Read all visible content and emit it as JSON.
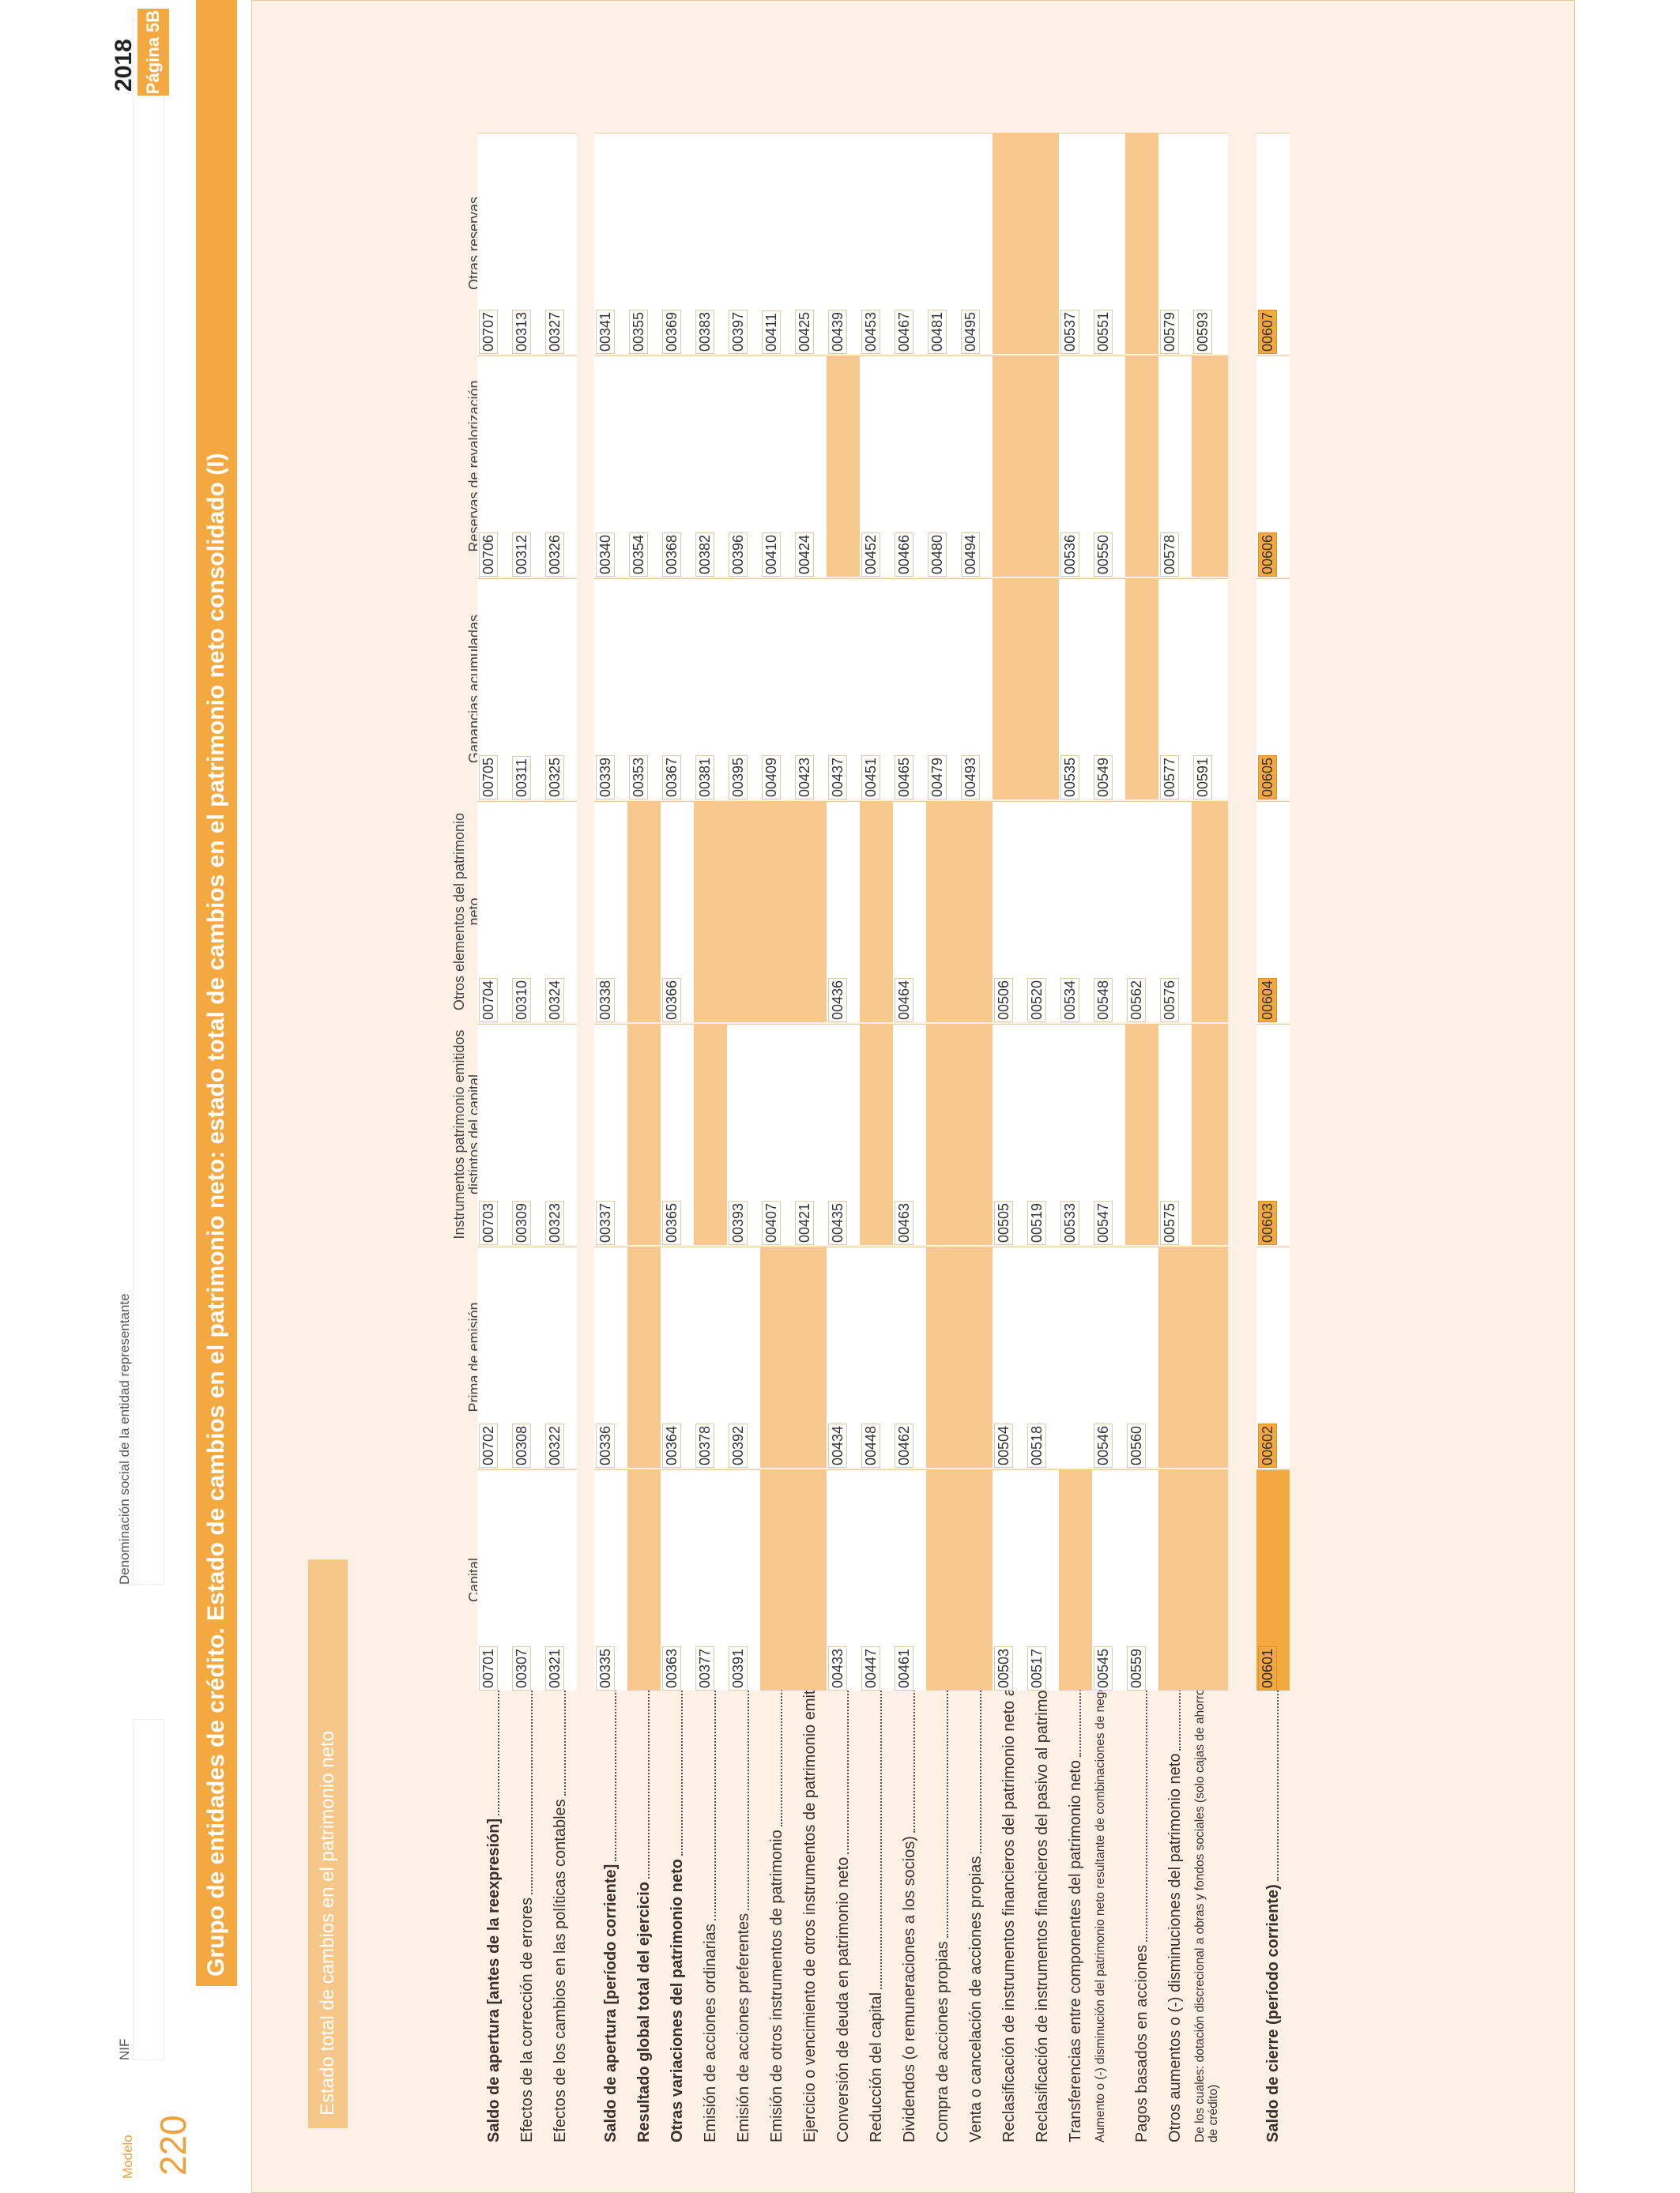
{
  "header": {
    "modelo_label": "Modelo",
    "modelo_number": "220",
    "nif_label": "NIF",
    "nif_value": "",
    "denominacion_label": "Denominación social de la entidad representante",
    "denominacion_value": "",
    "year": "2018",
    "page": "Página 5B"
  },
  "title": "Grupo de entidades de crédito. Estado de cambios en el patrimonio neto: estado total de cambios en el patrimonio neto consolidado (I)",
  "section": "Estado total de cambios en el patrimonio neto",
  "columns": [
    "Capital",
    "Prima de emisión",
    "Instrumentos patrimonio emitidos distintos del capital",
    "Otros elementos del patrimonio neto",
    "Ganancias acumuladas",
    "Reservas de revalorización",
    "Otras reservas"
  ],
  "rows": [
    {
      "label": "Saldo de apertura [antes de la reexpresión]",
      "bold": true,
      "codes": [
        "00701",
        "00702",
        "00703",
        "00704",
        "00705",
        "00706",
        "00707"
      ],
      "shaded": [
        false,
        false,
        false,
        false,
        false,
        false,
        false
      ]
    },
    {
      "label": "Efectos de la corrección de errores",
      "bold": false,
      "codes": [
        "00307",
        "00308",
        "00309",
        "00310",
        "00311",
        "00312",
        "00313"
      ],
      "shaded": [
        false,
        false,
        false,
        false,
        false,
        false,
        false
      ]
    },
    {
      "label": "Efectos de los cambios en las políticas contables",
      "bold": false,
      "codes": [
        "00321",
        "00322",
        "00323",
        "00324",
        "00325",
        "00326",
        "00327"
      ],
      "shaded": [
        false,
        false,
        false,
        false,
        false,
        false,
        false
      ]
    },
    {
      "label": "Saldo de apertura [período corriente]",
      "bold": true,
      "codes": [
        "00335",
        "00336",
        "00337",
        "00338",
        "00339",
        "00340",
        "00341"
      ],
      "shaded": [
        false,
        false,
        false,
        false,
        false,
        false,
        false
      ]
    },
    {
      "label": "Resultado global total del ejercicio",
      "bold": true,
      "codes": [
        "",
        "",
        "",
        "",
        "00353",
        "00354",
        "00355"
      ],
      "shaded": [
        true,
        true,
        true,
        true,
        false,
        false,
        false
      ]
    },
    {
      "label": "Otras variaciones del patrimonio neto",
      "bold": true,
      "codes": [
        "00363",
        "00364",
        "00365",
        "00366",
        "00367",
        "00368",
        "00369"
      ],
      "shaded": [
        false,
        false,
        false,
        false,
        false,
        false,
        false
      ]
    },
    {
      "label": "Emisión de acciones ordinarias",
      "bold": false,
      "codes": [
        "00377",
        "00378",
        "",
        "",
        "00381",
        "00382",
        "00383"
      ],
      "shaded": [
        false,
        false,
        true,
        true,
        false,
        false,
        false
      ]
    },
    {
      "label": "Emisión de acciones preferentes",
      "bold": false,
      "codes": [
        "00391",
        "00392",
        "00393",
        "",
        "00395",
        "00396",
        "00397"
      ],
      "shaded": [
        false,
        false,
        false,
        true,
        false,
        false,
        false
      ]
    },
    {
      "label": "Emisión de otros instrumentos de patrimonio",
      "bold": false,
      "codes": [
        "",
        "",
        "00407",
        "",
        "00409",
        "00410",
        "00411"
      ],
      "shaded": [
        true,
        true,
        false,
        true,
        false,
        false,
        false
      ]
    },
    {
      "label": "Ejercicio o vencimiento de otros instrumentos de patrimonio emitidos",
      "bold": false,
      "codes": [
        "",
        "",
        "00421",
        "",
        "00423",
        "00424",
        "00425"
      ],
      "shaded": [
        true,
        true,
        false,
        true,
        false,
        false,
        false
      ]
    },
    {
      "label": "Conversión de deuda en patrimonio neto",
      "bold": false,
      "codes": [
        "00433",
        "00434",
        "00435",
        "00436",
        "00437",
        "",
        "00439"
      ],
      "shaded": [
        false,
        false,
        false,
        false,
        false,
        true,
        false
      ]
    },
    {
      "label": "Reducción del capital",
      "bold": false,
      "codes": [
        "00447",
        "00448",
        "",
        "",
        "00451",
        "00452",
        "00453"
      ],
      "shaded": [
        false,
        false,
        true,
        true,
        false,
        false,
        false
      ]
    },
    {
      "label": "Dividendos (o remuneraciones a los socios)",
      "bold": false,
      "codes": [
        "00461",
        "00462",
        "00463",
        "00464",
        "00465",
        "00466",
        "00467"
      ],
      "shaded": [
        false,
        false,
        false,
        false,
        false,
        false,
        false
      ]
    },
    {
      "label": "Compra de acciones propias",
      "bold": false,
      "codes": [
        "",
        "",
        "",
        "",
        "00479",
        "00480",
        "00481"
      ],
      "shaded": [
        true,
        true,
        true,
        true,
        false,
        false,
        false
      ]
    },
    {
      "label": "Venta o cancelación de acciones propias",
      "bold": false,
      "codes": [
        "",
        "",
        "",
        "",
        "00493",
        "00494",
        "00495"
      ],
      "shaded": [
        true,
        true,
        true,
        true,
        false,
        false,
        false
      ]
    },
    {
      "label": "Reclasificación de instrumentos financieros del patrimonio neto al pasivo",
      "bold": false,
      "codes": [
        "00503",
        "00504",
        "00505",
        "00506",
        "",
        "",
        ""
      ],
      "shaded": [
        false,
        false,
        false,
        false,
        true,
        true,
        true
      ]
    },
    {
      "label": "Reclasificación de instrumentos financieros del pasivo al patrimonio neto",
      "bold": false,
      "codes": [
        "00517",
        "00518",
        "00519",
        "00520",
        "",
        "",
        ""
      ],
      "shaded": [
        false,
        false,
        false,
        false,
        true,
        true,
        true
      ]
    },
    {
      "label": "Transferencias entre componentes del patrimonio neto",
      "bold": false,
      "codes": [
        "",
        "",
        "00533",
        "00534",
        "00535",
        "00536",
        "00537"
      ],
      "shaded": [
        true,
        false,
        false,
        false,
        false,
        false,
        false
      ]
    },
    {
      "label": "Aumento o (-) disminución del patrimonio neto resultante de combinaciones de negocios",
      "bold": false,
      "small": true,
      "codes": [
        "00545",
        "00546",
        "00547",
        "00548",
        "00549",
        "00550",
        "00551"
      ],
      "shaded": [
        false,
        false,
        false,
        false,
        false,
        false,
        false
      ]
    },
    {
      "label": "Pagos basados en acciones",
      "bold": false,
      "codes": [
        "00559",
        "00560",
        "",
        "00562",
        "",
        "",
        ""
      ],
      "shaded": [
        false,
        false,
        true,
        false,
        true,
        true,
        true
      ]
    },
    {
      "label": "Otros aumentos o (-) disminuciones del patrimonio neto",
      "bold": false,
      "codes": [
        "",
        "",
        "00575",
        "00576",
        "00577",
        "00578",
        "00579"
      ],
      "shaded": [
        true,
        true,
        false,
        false,
        false,
        false,
        false
      ]
    },
    {
      "label": "De los cuales: dotación discrecional a obras y fondos sociales (solo cajas de ahorros y cooperativas de crédito)",
      "bold": false,
      "small": true,
      "codes": [
        "",
        "",
        "",
        "",
        "00591",
        "",
        "00593"
      ],
      "shaded": [
        true,
        true,
        true,
        true,
        false,
        true,
        false
      ]
    },
    {
      "label": "Saldo de cierre (período corriente)",
      "bold": true,
      "final": true,
      "codes": [
        "00601",
        "00602",
        "00603",
        "00604",
        "00605",
        "00606",
        "00607"
      ],
      "shaded": [
        false,
        false,
        false,
        false,
        false,
        false,
        false
      ]
    }
  ],
  "colors": {
    "accent": "#f4a940",
    "shade": "#f7c98d",
    "panel": "#fdf1e6"
  }
}
